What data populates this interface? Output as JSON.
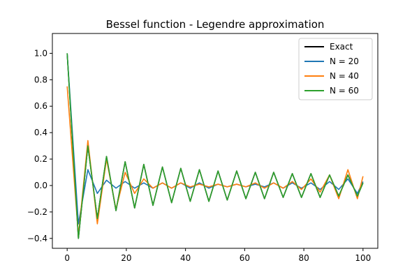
{
  "chart_data": {
    "type": "line",
    "title": "Bessel function - Legendre approximation",
    "xlabel": "",
    "ylabel": "",
    "xlim": [
      -5,
      105
    ],
    "ylim": [
      -0.475,
      1.15
    ],
    "xticks": [
      0,
      20,
      40,
      60,
      80,
      100
    ],
    "xtick_labels": [
      "0",
      "20",
      "40",
      "60",
      "80",
      "100"
    ],
    "yticks": [
      -0.4,
      -0.2,
      0.0,
      0.2,
      0.4,
      0.6,
      0.8,
      1.0
    ],
    "ytick_labels": [
      "−0.4",
      "−0.2",
      "0.0",
      "0.2",
      "0.4",
      "0.6",
      "0.8",
      "1.0"
    ],
    "grid": false,
    "legend_position": "top-right",
    "legend": [
      "Exact",
      "N = 20",
      "N = 40",
      "N = 60"
    ],
    "x": [
      0,
      3.8,
      7.0,
      10.2,
      13.3,
      16.5,
      19.6,
      22.8,
      25.9,
      29.0,
      32.2,
      35.3,
      38.4,
      41.6,
      44.7,
      47.9,
      51.0,
      54.1,
      57.3,
      60.4,
      63.6,
      66.7,
      69.8,
      73.0,
      76.1,
      79.2,
      82.4,
      85.5,
      88.7,
      91.8,
      94.9,
      98.1,
      100
    ],
    "series": [
      {
        "name": "Exact",
        "color": "#000000",
        "values": [
          1.0,
          -0.4,
          0.3,
          -0.25,
          0.22,
          -0.19,
          0.18,
          -0.17,
          0.16,
          -0.15,
          0.14,
          -0.13,
          0.13,
          -0.12,
          0.12,
          -0.12,
          0.11,
          -0.11,
          0.11,
          -0.1,
          0.1,
          -0.1,
          0.1,
          -0.09,
          0.09,
          -0.09,
          0.09,
          -0.09,
          0.08,
          -0.08,
          0.08,
          -0.08,
          0.02
        ]
      },
      {
        "name": "N = 20",
        "color": "#1f77b4",
        "values": [
          1.0,
          -0.29,
          0.12,
          -0.06,
          0.04,
          -0.02,
          0.03,
          -0.02,
          0.02,
          -0.02,
          0.02,
          -0.02,
          0.02,
          -0.02,
          0.02,
          -0.02,
          0.01,
          -0.01,
          0.01,
          -0.01,
          0.01,
          -0.01,
          0.02,
          -0.02,
          0.02,
          -0.02,
          0.02,
          -0.03,
          0.03,
          -0.03,
          0.05,
          -0.06,
          0.03
        ]
      },
      {
        "name": "N = 40",
        "color": "#ff7f0e",
        "values": [
          0.75,
          -0.38,
          0.34,
          -0.29,
          0.2,
          -0.18,
          0.1,
          -0.06,
          0.05,
          -0.02,
          0.02,
          -0.02,
          0.02,
          -0.01,
          0.01,
          -0.01,
          0.01,
          -0.01,
          0.01,
          -0.01,
          0.02,
          -0.02,
          0.02,
          -0.02,
          0.03,
          -0.03,
          0.05,
          -0.05,
          0.08,
          -0.1,
          0.12,
          -0.1,
          0.07
        ]
      },
      {
        "name": "N = 60",
        "color": "#2ca02c",
        "values": [
          1.0,
          -0.4,
          0.3,
          -0.25,
          0.22,
          -0.19,
          0.18,
          -0.17,
          0.16,
          -0.15,
          0.14,
          -0.13,
          0.13,
          -0.12,
          0.12,
          -0.12,
          0.11,
          -0.11,
          0.11,
          -0.1,
          0.1,
          -0.1,
          0.1,
          -0.09,
          0.09,
          -0.09,
          0.09,
          -0.09,
          0.08,
          -0.08,
          0.08,
          -0.08,
          0.02
        ]
      }
    ]
  }
}
